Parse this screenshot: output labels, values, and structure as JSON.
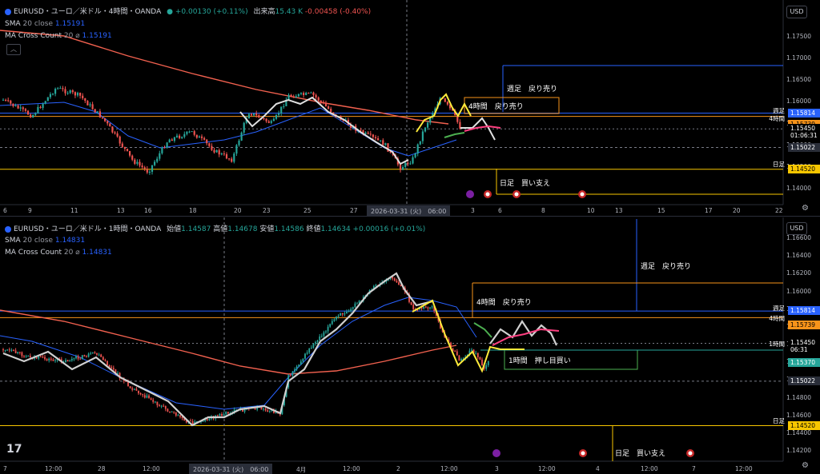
{
  "top": {
    "header": {
      "symbol": "EURUSD・ユーロ／米ドル・4時間・OANDA",
      "change": "+0.00130 (+0.11%)",
      "volume_label": "出来高",
      "volume_value": "15.43 K",
      "volume_change": "-0.00458 (-0.40%)"
    },
    "indicators": [
      {
        "name": "SMA",
        "param": "20 close",
        "value": "1.15191"
      },
      {
        "name": "MA Cross Count",
        "param": "20",
        "value": "1.15191"
      }
    ],
    "currency": "USD",
    "price_scale": [
      "1.17500",
      "1.17000",
      "1.16500",
      "1.16000",
      "1.15500",
      "1.15000",
      "1.14500",
      "1.14000"
    ],
    "price_tags": {
      "weekly_label": "週足",
      "h4_label": "4時間",
      "daily_label": "日足",
      "weekly_price": "1.15814",
      "h4_price": "1.15739",
      "current_price": "1.15450",
      "countdown": "01:06:31",
      "crosshair_price": "1.15022",
      "daily_price": "1.14520"
    },
    "time_axis": [
      "6",
      "9",
      "11",
      "13",
      "16",
      "18",
      "20",
      "23",
      "25",
      "27",
      "3",
      "6",
      "8",
      "10",
      "13",
      "15",
      "17",
      "20",
      "22"
    ],
    "crosshair_time": "2026-03-31 (火)　06:00",
    "annotations": {
      "weekly": "週足　戻り売り",
      "h4": "4時間　戻り売り",
      "daily": "日足　買い支え"
    }
  },
  "bottom": {
    "header": {
      "symbol": "EURUSD・ユーロ／米ドル・1時間・OANDA",
      "open_label": "始値",
      "open": "1.14587",
      "high_label": "高値",
      "high": "1.14678",
      "low_label": "安値",
      "low": "1.14586",
      "close_label": "終値",
      "close": "1.14634",
      "change": "+0.00016 (+0.01%)"
    },
    "indicators": [
      {
        "name": "SMA",
        "param": "20 close",
        "value": "1.14831"
      },
      {
        "name": "MA Cross Count",
        "param": "20",
        "value": "1.14831"
      }
    ],
    "currency": "USD",
    "price_scale": [
      "1.16600",
      "1.16400",
      "1.16200",
      "1.16000",
      "1.15800",
      "1.15600",
      "1.15400",
      "1.15200",
      "1.15000",
      "1.14800",
      "1.14600",
      "1.14400",
      "1.14200"
    ],
    "price_tags": {
      "weekly_label": "週足",
      "h4_label": "4時間",
      "h1_label": "1時間",
      "daily_label": "日足",
      "weekly_price": "1.15814",
      "h4_price": "1.15739",
      "current_price": "1.15450",
      "countdown": "06:31",
      "h1_price": "1.15370",
      "crosshair_price": "1.15022",
      "daily_price": "1.14520"
    },
    "time_axis": [
      "7",
      "12:00",
      "28",
      "12:00",
      "4月",
      "12:00",
      "2",
      "12:00",
      "3",
      "12:00",
      "4",
      "12:00",
      "7",
      "12:00"
    ],
    "crosshair_time": "2026-03-31 (火)　06:00",
    "annotations": {
      "weekly": "週足　戻り売り",
      "h4": "4時間　戻り売り",
      "h1": "1時間　押し目買い",
      "daily": "日足　買い支え"
    }
  },
  "colors": {
    "up": "#26a69a",
    "down": "#ef5350",
    "sma": "#2962ff",
    "slow_ma": "#f2614f",
    "weekly_line": "#2962ff",
    "h4_line": "#f7931a",
    "daily_line": "#f7c600",
    "h1_box": "#4caf50"
  }
}
